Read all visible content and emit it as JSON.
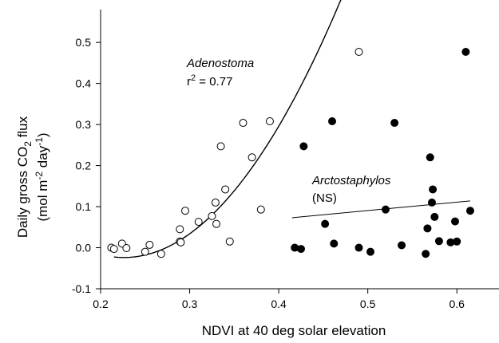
{
  "chart_data": {
    "type": "scatter",
    "xlabel": "NDVI at 40 deg solar elevation",
    "ylabel_line1": "Daily gross CO",
    "ylabel_line1_sub": "2",
    "ylabel_line1_end": " flux",
    "ylabel_line2_pre": "(mol m",
    "ylabel_line2_sup1": "-2",
    "ylabel_line2_mid": " day",
    "ylabel_line2_sup2": "-1",
    "ylabel_line2_end": ")",
    "xlim": [
      0.2,
      0.65
    ],
    "ylim": [
      -0.1,
      0.58
    ],
    "xticks": [
      "0.2",
      "0.3",
      "0.4",
      "0.5",
      "0.6"
    ],
    "yticks": [
      "-0.1",
      "0.0",
      "0.1",
      "0.2",
      "0.3",
      "0.4",
      "0.5"
    ],
    "series": [
      {
        "name": "Adenostoma",
        "marker": "open-circle",
        "points": [
          [
            0.212,
            0.0
          ],
          [
            0.215,
            -0.003
          ],
          [
            0.224,
            0.01
          ],
          [
            0.229,
            -0.001
          ],
          [
            0.25,
            -0.01
          ],
          [
            0.255,
            0.007
          ],
          [
            0.268,
            -0.015
          ],
          [
            0.289,
            0.045
          ],
          [
            0.289,
            0.015
          ],
          [
            0.29,
            0.013
          ],
          [
            0.295,
            0.09
          ],
          [
            0.31,
            0.063
          ],
          [
            0.325,
            0.077
          ],
          [
            0.329,
            0.11
          ],
          [
            0.33,
            0.058
          ],
          [
            0.335,
            0.247
          ],
          [
            0.34,
            0.142
          ],
          [
            0.345,
            0.015
          ],
          [
            0.36,
            0.304
          ],
          [
            0.37,
            0.22
          ],
          [
            0.38,
            0.093
          ],
          [
            0.39,
            0.308
          ],
          [
            0.49,
            0.477
          ]
        ]
      },
      {
        "name": "Arctostaphylos",
        "marker": "filled-circle",
        "points": [
          [
            0.418,
            0.0
          ],
          [
            0.425,
            -0.003
          ],
          [
            0.428,
            0.247
          ],
          [
            0.452,
            0.058
          ],
          [
            0.46,
            0.308
          ],
          [
            0.462,
            0.01
          ],
          [
            0.49,
            0.0
          ],
          [
            0.503,
            -0.01
          ],
          [
            0.52,
            0.093
          ],
          [
            0.53,
            0.304
          ],
          [
            0.538,
            0.006
          ],
          [
            0.565,
            -0.015
          ],
          [
            0.567,
            0.047
          ],
          [
            0.57,
            0.22
          ],
          [
            0.572,
            0.11
          ],
          [
            0.573,
            0.142
          ],
          [
            0.575,
            0.075
          ],
          [
            0.58,
            0.016
          ],
          [
            0.593,
            0.013
          ],
          [
            0.598,
            0.064
          ],
          [
            0.6,
            0.015
          ],
          [
            0.61,
            0.477
          ],
          [
            0.615,
            0.09
          ]
        ]
      }
    ],
    "fits": [
      {
        "series": "Adenostoma",
        "kind": "quadratic",
        "x_range": [
          0.215,
          0.487
        ],
        "coef": [
          0.5162,
          -4.7785,
          10.5694
        ]
      },
      {
        "series": "Arctostaphylos",
        "kind": "linear",
        "x_range": [
          0.415,
          0.615
        ],
        "points": [
          [
            0.415,
            0.073
          ],
          [
            0.615,
            0.114
          ]
        ]
      }
    ],
    "annotations": [
      {
        "text": "Adenostoma",
        "italic": true
      },
      {
        "text_pre": "r",
        "text_sup": "2",
        "text_post": " = 0.77"
      },
      {
        "text": "Arctostaphylos",
        "italic": true
      },
      {
        "text": "(NS)"
      }
    ]
  }
}
